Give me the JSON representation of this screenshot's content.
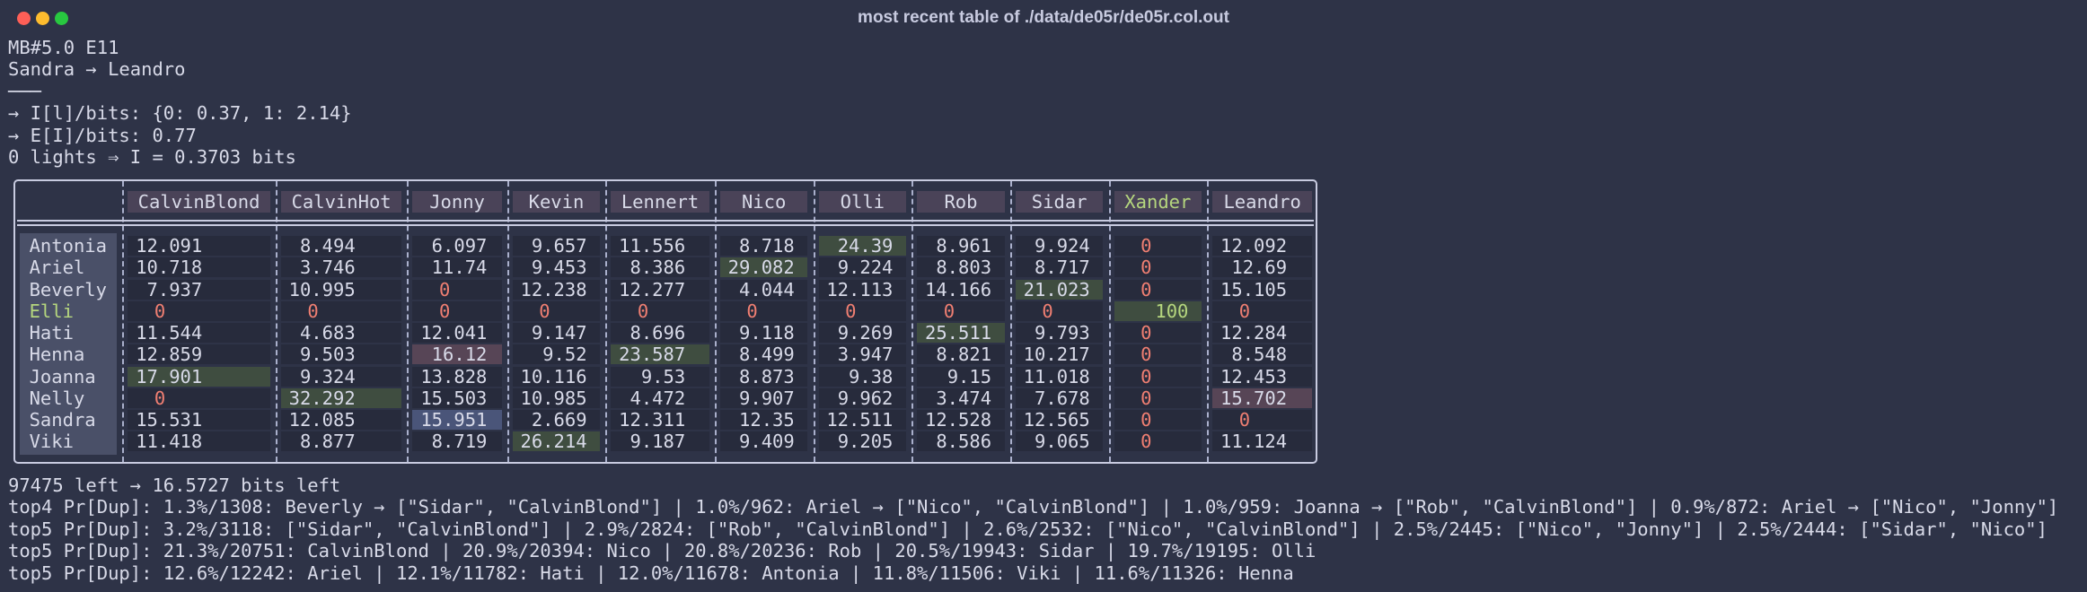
{
  "window": {
    "title": "most recent table of ./data/de05r/de05r.col.out"
  },
  "header_lines": [
    "MB#5.0 E11",
    "Sandra → Leandro",
    "───",
    "→ I[l]/bits: {0: 0.37, 1: 2.14}",
    "→ E[I]/bits: 0.77",
    "0 lights ⇒ I = 0.3703 bits"
  ],
  "table": {
    "columns": [
      "CalvinBlond",
      "CalvinHot",
      "Jonny",
      "Kevin",
      "Lennert",
      "Nico",
      "Olli",
      "Rob",
      "Sidar",
      "Xander",
      "Leandro"
    ],
    "rows": [
      {
        "label": "Antonia",
        "cells": [
          "12.091",
          "8.494",
          "6.097",
          "9.657",
          "11.556",
          "8.718",
          "24.39",
          "8.961",
          "9.924",
          "0",
          "12.092"
        ]
      },
      {
        "label": "Ariel",
        "cells": [
          "10.718",
          "3.746",
          "11.74",
          "9.453",
          "8.386",
          "29.082",
          "9.224",
          "8.803",
          "8.717",
          "0",
          "12.69"
        ]
      },
      {
        "label": "Beverly",
        "cells": [
          "7.937",
          "10.995",
          "0",
          "12.238",
          "12.277",
          "4.044",
          "12.113",
          "14.166",
          "21.023",
          "0",
          "15.105"
        ]
      },
      {
        "label": "Elli",
        "cells": [
          "0",
          "0",
          "0",
          "0",
          "0",
          "0",
          "0",
          "0",
          "0",
          "100",
          "0"
        ]
      },
      {
        "label": "Hati",
        "cells": [
          "11.544",
          "4.683",
          "12.041",
          "9.147",
          "8.696",
          "9.118",
          "9.269",
          "25.511",
          "9.793",
          "0",
          "12.284"
        ]
      },
      {
        "label": "Henna",
        "cells": [
          "12.859",
          "9.503",
          "16.12",
          "9.52",
          "23.587",
          "8.499",
          "3.947",
          "8.821",
          "10.217",
          "0",
          "8.548"
        ]
      },
      {
        "label": "Joanna",
        "cells": [
          "17.901",
          "9.324",
          "13.828",
          "10.116",
          "9.53",
          "8.873",
          "9.38",
          "9.15",
          "11.018",
          "0",
          "12.453"
        ]
      },
      {
        "label": "Nelly",
        "cells": [
          "0",
          "32.292",
          "15.503",
          "10.985",
          "4.472",
          "9.907",
          "9.962",
          "3.474",
          "7.678",
          "0",
          "15.702"
        ]
      },
      {
        "label": "Sandra",
        "cells": [
          "15.531",
          "12.085",
          "15.951",
          "2.669",
          "12.311",
          "12.35",
          "12.511",
          "12.528",
          "12.565",
          "0",
          "0"
        ]
      },
      {
        "label": "Viki",
        "cells": [
          "11.418",
          "8.877",
          "8.719",
          "26.214",
          "9.187",
          "9.409",
          "9.205",
          "8.586",
          "9.065",
          "0",
          "11.124"
        ]
      }
    ]
  },
  "footer_lines": [
    "97475 left → 16.5727 bits left",
    "top4 Pr[Dup]: 1.3%/1308: Beverly → [\"Sidar\", \"CalvinBlond\"] | 1.0%/962: Ariel → [\"Nico\", \"CalvinBlond\"] | 1.0%/959: Joanna → [\"Rob\", \"CalvinBlond\"] | 0.9%/872: Ariel → [\"Nico\", \"Jonny\"]",
    "top5 Pr[Dup]: 3.2%/3118: [\"Sidar\", \"CalvinBlond\"] | 2.9%/2824: [\"Rob\", \"CalvinBlond\"] | 2.6%/2532: [\"Nico\", \"CalvinBlond\"] | 2.5%/2445: [\"Nico\", \"Jonny\"] | 2.5%/2444: [\"Sidar\", \"Nico\"]",
    "top5 Pr[Dup]: 21.3%/20751: CalvinBlond | 20.9%/20394: Nico | 20.8%/20236: Rob | 20.5%/19943: Sidar | 19.7%/19195: Olli",
    "top5 Pr[Dup]: 12.6%/12242: Ariel | 12.1%/11782: Hati | 12.0%/11678: Antonia | 11.8%/11506: Viki | 11.6%/11326: Henna"
  ]
}
